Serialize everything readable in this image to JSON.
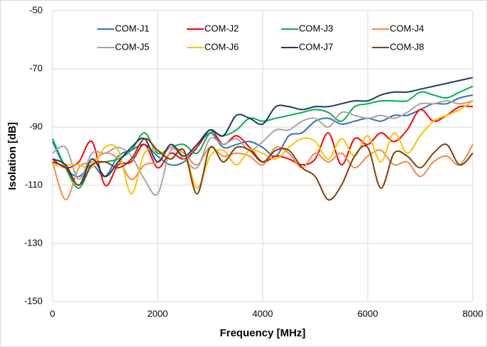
{
  "chart_data": {
    "type": "line",
    "x_label": "Frequency [MHz]",
    "y_label": "Isolation [dB]",
    "x": [
      0,
      250,
      500,
      750,
      1000,
      1250,
      1500,
      1750,
      2000,
      2250,
      2500,
      2750,
      3000,
      3250,
      3500,
      3750,
      4000,
      4250,
      4500,
      4750,
      5000,
      5250,
      5500,
      5750,
      6000,
      6250,
      6500,
      6750,
      7000,
      7250,
      7500,
      7750,
      8000
    ],
    "series": [
      {
        "name": "COM-J1",
        "color": "#2e75b6",
        "values": [
          -95,
          -104,
          -107,
          -103,
          -107,
          -100,
          -98,
          -96,
          -100,
          -103,
          -102,
          -97,
          -92,
          -97,
          -96,
          -95,
          -97,
          -100,
          -93,
          -92,
          -88,
          -87,
          -89,
          -88,
          -87,
          -88,
          -86,
          -86,
          -84,
          -82,
          -82,
          -80,
          -79
        ]
      },
      {
        "name": "COM-J2",
        "color": "#ff0000",
        "values": [
          -101,
          -104,
          -102,
          -95,
          -110,
          -103,
          -102,
          -96,
          -104,
          -99,
          -101,
          -97,
          -91,
          -96,
          -93,
          -97,
          -102,
          -100,
          -101,
          -103,
          -101,
          -92,
          -103,
          -94,
          -96,
          -92,
          -95,
          -91,
          -84,
          -88,
          -86,
          -83,
          -83
        ]
      },
      {
        "name": "COM-J3",
        "color": "#00b050",
        "values": [
          -94,
          -104,
          -111,
          -103,
          -102,
          -101,
          -98,
          -92,
          -99,
          -97,
          -96,
          -99,
          -92,
          -93,
          -91,
          -87,
          -88,
          -87,
          -86,
          -85,
          -84,
          -85,
          -88,
          -83,
          -82,
          -81,
          -81,
          -81,
          -78,
          -79,
          -80,
          -78,
          -76
        ]
      },
      {
        "name": "COM-J4",
        "color": "#f4894a",
        "values": [
          -102,
          -115,
          -104,
          -102,
          -99,
          -101,
          -108,
          -103,
          -102,
          -97,
          -99,
          -103,
          -97,
          -100,
          -99,
          -100,
          -103,
          -97,
          -99,
          -104,
          -99,
          -102,
          -99,
          -104,
          -100,
          -98,
          -103,
          -102,
          -107,
          -102,
          -100,
          -103,
          -96
        ]
      },
      {
        "name": "COM-J5",
        "color": "#a5a5a5",
        "values": [
          -99,
          -97,
          -108,
          -99,
          -99,
          -97,
          -100,
          -108,
          -113,
          -98,
          -101,
          -104,
          -94,
          -96,
          -94,
          -98,
          -95,
          -91,
          -91,
          -88,
          -87,
          -90,
          -85,
          -86,
          -87,
          -86,
          -87,
          -85,
          -82,
          -82,
          -81,
          -82,
          -81
        ]
      },
      {
        "name": "COM-J6",
        "color": "#ffc000",
        "values": [
          -103,
          -103,
          -103,
          -104,
          -97,
          -98,
          -113,
          -99,
          -98,
          -101,
          -98,
          -111,
          -100,
          -98,
          -103,
          -98,
          -99,
          -101,
          -97,
          -94,
          -95,
          -101,
          -94,
          -100,
          -93,
          -102,
          -92,
          -99,
          -93,
          -88,
          -86,
          -84,
          -81
        ]
      },
      {
        "name": "COM-J7",
        "color": "#203864",
        "values": [
          -101,
          -103,
          -110,
          -101,
          -107,
          -102,
          -97,
          -94,
          -102,
          -96,
          -100,
          -96,
          -91,
          -93,
          -86,
          -87,
          -89,
          -83,
          -83,
          -84,
          -83,
          -83,
          -82,
          -81,
          -81,
          -79,
          -78,
          -78,
          -77,
          -76,
          -75,
          -74,
          -73
        ]
      },
      {
        "name": "COM-J8",
        "color": "#843c0c",
        "values": [
          -102,
          -104,
          -110,
          -103,
          -102,
          -104,
          -101,
          -94,
          -98,
          -101,
          -98,
          -113,
          -97,
          -102,
          -97,
          -98,
          -102,
          -98,
          -98,
          -104,
          -107,
          -115,
          -110,
          -100,
          -97,
          -111,
          -99,
          -100,
          -104,
          -99,
          -96,
          -103,
          -99
        ]
      }
    ],
    "xlim": [
      0,
      8000
    ],
    "xticks": [
      0,
      2000,
      4000,
      6000,
      8000
    ],
    "ylim": [
      -150,
      -50
    ],
    "yticks": [
      -150,
      -130,
      -110,
      -90,
      -70,
      -50
    ],
    "grid": true,
    "legend": "top"
  }
}
